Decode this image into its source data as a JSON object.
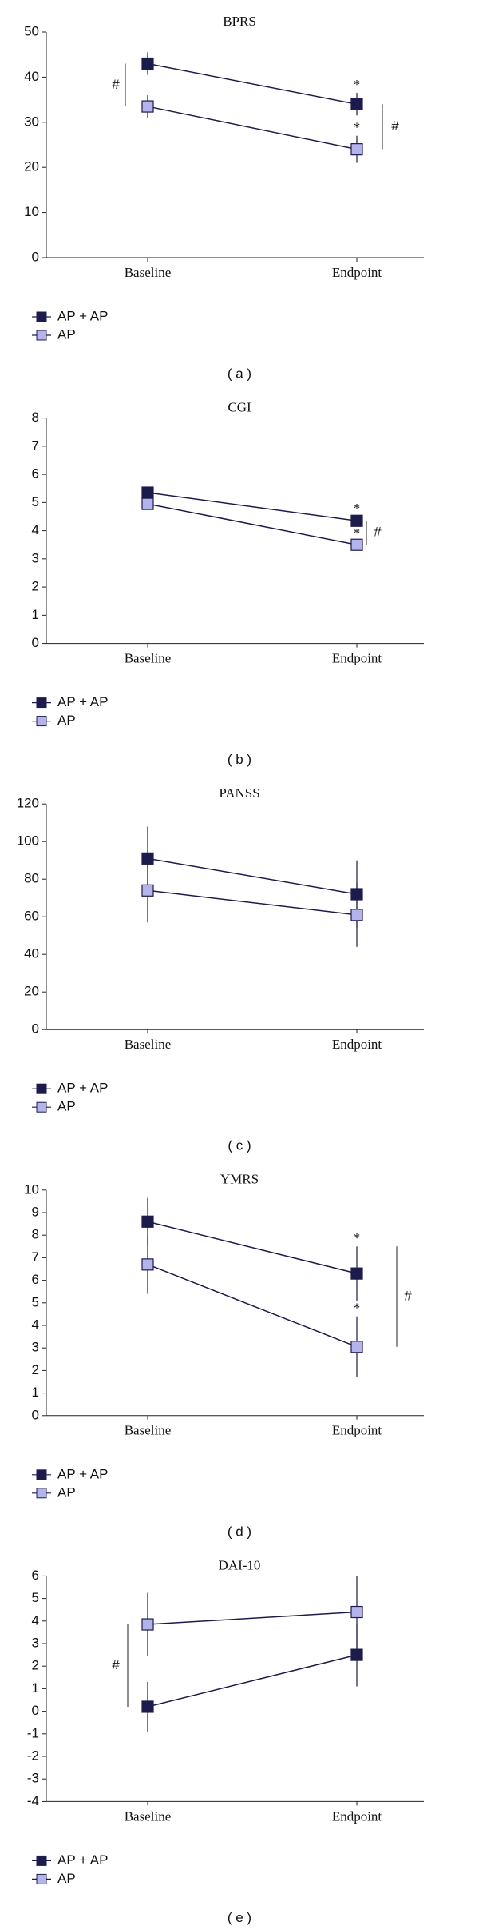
{
  "chart_data": [
    {
      "type": "line",
      "title": "BPRS",
      "categories": [
        "Baseline",
        "Endpoint"
      ],
      "series": [
        {
          "name": "AP + AP",
          "color": "#1c1c4c",
          "values": [
            43,
            34
          ],
          "errors": [
            2.5,
            2.5
          ]
        },
        {
          "name": "AP",
          "color": "#b4b4ec",
          "values": [
            33.5,
            24
          ],
          "errors": [
            2.5,
            3
          ]
        }
      ],
      "ylim": [
        0,
        50
      ],
      "yticks": [
        0,
        10,
        20,
        30,
        40,
        50
      ],
      "annotations": [
        "#",
        "*",
        "*",
        "#"
      ],
      "panel_label": "( a )"
    },
    {
      "type": "line",
      "title": "CGI",
      "categories": [
        "Baseline",
        "Endpoint"
      ],
      "series": [
        {
          "name": "AP + AP",
          "color": "#1c1c4c",
          "values": [
            5.35,
            4.35
          ],
          "errors": [
            0.15,
            0.15
          ]
        },
        {
          "name": "AP",
          "color": "#b4b4ec",
          "values": [
            4.95,
            3.5
          ],
          "errors": [
            0.15,
            0.12
          ]
        }
      ],
      "ylim": [
        0,
        8
      ],
      "yticks": [
        0,
        1,
        2,
        3,
        4,
        5,
        6,
        7,
        8
      ],
      "annotations": [
        "*",
        "*",
        "#"
      ],
      "panel_label": "( b )"
    },
    {
      "type": "line",
      "title": "PANSS",
      "categories": [
        "Baseline",
        "Endpoint"
      ],
      "series": [
        {
          "name": "AP + AP",
          "color": "#1c1c4c",
          "values": [
            91,
            72
          ],
          "errors": [
            17,
            18
          ]
        },
        {
          "name": "AP",
          "color": "#b4b4ec",
          "values": [
            74,
            61
          ],
          "errors": [
            17,
            17
          ]
        }
      ],
      "ylim": [
        0,
        120
      ],
      "yticks": [
        0,
        20,
        40,
        60,
        80,
        100,
        120
      ],
      "annotations": [],
      "panel_label": "( c )"
    },
    {
      "type": "line",
      "title": "YMRS",
      "categories": [
        "Baseline",
        "Endpoint"
      ],
      "series": [
        {
          "name": "AP + AP",
          "color": "#1c1c4c",
          "values": [
            8.6,
            6.3
          ],
          "errors": [
            1.05,
            1.2
          ]
        },
        {
          "name": "AP",
          "color": "#b4b4ec",
          "values": [
            6.7,
            3.05
          ],
          "errors": [
            1.3,
            1.35
          ]
        }
      ],
      "ylim": [
        0,
        10
      ],
      "yticks": [
        0,
        1,
        2,
        3,
        4,
        5,
        6,
        7,
        8,
        9,
        10
      ],
      "annotations": [
        "*",
        "*",
        "#"
      ],
      "panel_label": "( d )"
    },
    {
      "type": "line",
      "title": "DAI-10",
      "categories": [
        "Baseline",
        "Endpoint"
      ],
      "series": [
        {
          "name": "AP + AP",
          "color": "#1c1c4c",
          "values": [
            0.2,
            2.5
          ],
          "errors": [
            1.1,
            1.4
          ]
        },
        {
          "name": "AP",
          "color": "#b4b4ec",
          "values": [
            3.85,
            4.4
          ],
          "errors": [
            1.4,
            1.6
          ]
        }
      ],
      "ylim": [
        -4,
        6
      ],
      "yticks": [
        -4,
        -3,
        -2,
        -1,
        0,
        1,
        2,
        3,
        4,
        5,
        6
      ],
      "annotations": [
        "#"
      ],
      "panel_label": "( e )"
    }
  ]
}
